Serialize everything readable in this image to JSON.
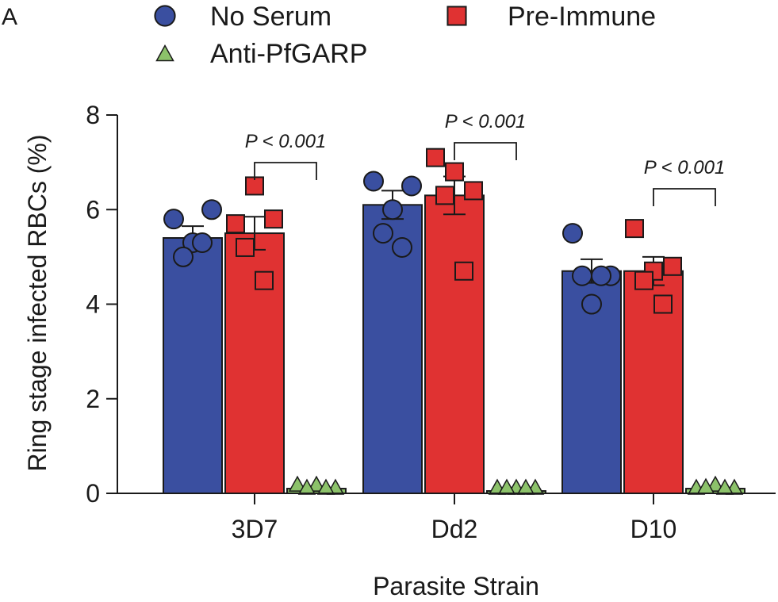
{
  "panel_label": "A",
  "chart_data": {
    "type": "bar",
    "xlabel": "Parasite Strain",
    "ylabel": "Ring stage infected RBCs (%)",
    "ylim": [
      0,
      8
    ],
    "yticks": [
      0,
      2,
      4,
      6,
      8
    ],
    "categories": [
      "3D7",
      "Dd2",
      "D10"
    ],
    "series": [
      {
        "name": "No Serum",
        "color": "#3a4fa0",
        "marker": "circle",
        "values": [
          5.4,
          6.1,
          4.7
        ],
        "errors": [
          0.25,
          0.3,
          0.25
        ],
        "points": [
          [
            5.8,
            6.0,
            5.3,
            5.0,
            5.3
          ],
          [
            6.6,
            6.5,
            6.0,
            5.5,
            5.2
          ],
          [
            5.5,
            4.6,
            4.0,
            4.6,
            4.6
          ]
        ]
      },
      {
        "name": "Pre-Immune",
        "color": "#e03232",
        "marker": "square",
        "values": [
          5.5,
          6.3,
          4.7
        ],
        "errors": [
          0.35,
          0.4,
          0.3
        ],
        "points": [
          [
            5.7,
            5.8,
            6.5,
            5.2,
            4.5
          ],
          [
            7.1,
            6.4,
            6.8,
            6.3,
            4.7
          ],
          [
            5.6,
            4.8,
            4.7,
            4.5,
            4.0
          ]
        ]
      },
      {
        "name": "Anti-PfGARP",
        "color": "#8cc26a",
        "marker": "triangle",
        "values": [
          0.1,
          0.05,
          0.1
        ],
        "errors": [
          0.05,
          0.03,
          0.05
        ],
        "points": [
          [
            0.2,
            0.1,
            0.2,
            0.1,
            0.1
          ],
          [
            0.05,
            0.0,
            0.1,
            0.1,
            0.0
          ],
          [
            0.1,
            0.1,
            0.2,
            0.15,
            0.1
          ]
        ]
      }
    ],
    "annotations": [
      {
        "text": "P < 0.001",
        "category": "3D7"
      },
      {
        "text": "P < 0.001",
        "category": "Dd2"
      },
      {
        "text": "P < 0.001",
        "category": "D10"
      }
    ]
  }
}
